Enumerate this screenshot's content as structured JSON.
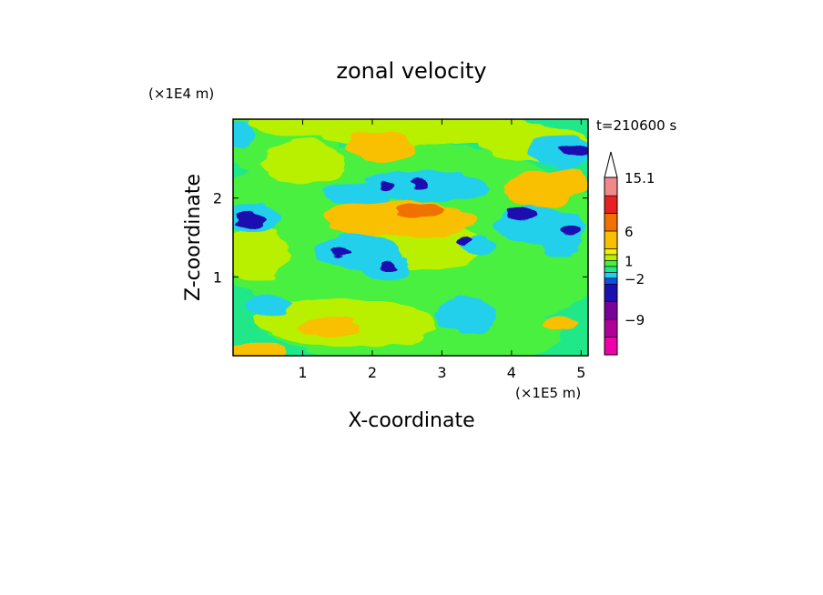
{
  "chart_data": {
    "type": "heatmap",
    "title": "zonal velocity",
    "xlabel": "X-coordinate",
    "ylabel": "Z-coordinate",
    "x_scale_label": "(×1E5 m)",
    "y_scale_label": "(×1E4 m)",
    "time_label": "t=210600 s",
    "xlim": [
      0,
      5.1
    ],
    "ylim": [
      0,
      3.0
    ],
    "x_ticks": [
      {
        "value": 1,
        "label": "1"
      },
      {
        "value": 2,
        "label": "2"
      },
      {
        "value": 3,
        "label": "3"
      },
      {
        "value": 4,
        "label": "4"
      },
      {
        "value": 5,
        "label": "5"
      }
    ],
    "y_ticks": [
      {
        "value": 1,
        "label": "1"
      },
      {
        "value": 2,
        "label": "2"
      }
    ],
    "colorbar": {
      "levels": [
        -15,
        -12,
        -9,
        -6,
        -3,
        -2,
        -1,
        0,
        1,
        2,
        3,
        6,
        9,
        12,
        15.1
      ],
      "colors": [
        "#f000a8",
        "#b0009a",
        "#7a009a",
        "#1a10b0",
        "#1050e8",
        "#22d0ec",
        "#20e888",
        "#48f040",
        "#b8f000",
        "#f0f000",
        "#f8c000",
        "#f07000",
        "#e82020",
        "#f08a8a",
        "#f8c8c8"
      ],
      "labels": [
        {
          "value": 15.1,
          "label": "15.1"
        },
        {
          "value": 6,
          "label": "6"
        },
        {
          "value": 1,
          "label": "1"
        },
        {
          "value": -2,
          "label": "−2"
        },
        {
          "value": -9,
          "label": "−9"
        }
      ],
      "max_arrow": true
    },
    "fields": [
      {
        "level": 0.5,
        "blobs": [
          {
            "x": 2.55,
            "z": 1.5,
            "rx": 3.0,
            "rz": 1.2,
            "a": 3
          },
          {
            "x": 2.5,
            "z": 0.35,
            "rx": 2.2,
            "rz": 0.45,
            "a": 3
          },
          {
            "x": 0.6,
            "z": 2.7,
            "rx": 0.9,
            "rz": 0.4,
            "a": 2
          }
        ]
      },
      {
        "level": 1.5,
        "blobs": [
          {
            "x": 1.6,
            "z": 0.42,
            "rx": 1.3,
            "rz": 0.32,
            "a": 2
          },
          {
            "x": 2.4,
            "z": 2.9,
            "rx": 2.2,
            "rz": 0.22,
            "a": 2
          },
          {
            "x": 1.0,
            "z": 2.45,
            "rx": 0.6,
            "rz": 0.28,
            "a": 2
          },
          {
            "x": 2.8,
            "z": 1.4,
            "rx": 0.8,
            "rz": 0.3,
            "a": 2
          },
          {
            "x": 4.3,
            "z": 2.7,
            "rx": 0.8,
            "rz": 0.25,
            "a": 2
          },
          {
            "x": 0.35,
            "z": 1.3,
            "rx": 0.45,
            "rz": 0.35,
            "a": 2
          }
        ]
      },
      {
        "level": 3,
        "blobs": [
          {
            "x": 2.4,
            "z": 1.75,
            "rx": 1.1,
            "rz": 0.22,
            "a": 2
          },
          {
            "x": 1.9,
            "z": 1.65,
            "rx": 0.5,
            "rz": 0.15,
            "a": 1
          },
          {
            "x": 2.1,
            "z": 2.65,
            "rx": 0.5,
            "rz": 0.18,
            "a": 1
          },
          {
            "x": 4.4,
            "z": 2.1,
            "rx": 0.5,
            "rz": 0.22,
            "a": 1
          },
          {
            "x": 4.8,
            "z": 2.2,
            "rx": 0.3,
            "rz": 0.2,
            "a": 1
          },
          {
            "x": 1.4,
            "z": 0.35,
            "rx": 0.45,
            "rz": 0.12,
            "a": 1
          },
          {
            "x": 0.25,
            "z": 0.05,
            "rx": 0.5,
            "rz": 0.12,
            "a": 1
          },
          {
            "x": 4.7,
            "z": 0.4,
            "rx": 0.25,
            "rz": 0.12,
            "a": 1
          }
        ]
      },
      {
        "level": 6,
        "blobs": [
          {
            "x": 2.7,
            "z": 1.85,
            "rx": 0.35,
            "rz": 0.08,
            "a": 1
          }
        ]
      },
      {
        "level": -1.5,
        "blobs": [
          {
            "x": 0.3,
            "z": 1.75,
            "rx": 0.4,
            "rz": 0.18,
            "a": 2
          },
          {
            "x": 2.8,
            "z": 2.15,
            "rx": 0.9,
            "rz": 0.2,
            "a": 2
          },
          {
            "x": 1.8,
            "z": 2.05,
            "rx": 0.5,
            "rz": 0.15,
            "a": 2
          },
          {
            "x": 4.4,
            "z": 1.65,
            "rx": 0.65,
            "rz": 0.25,
            "a": 2
          },
          {
            "x": 4.7,
            "z": 2.6,
            "rx": 0.45,
            "rz": 0.2,
            "a": 2
          },
          {
            "x": 3.35,
            "z": 0.5,
            "rx": 0.45,
            "rz": 0.22,
            "a": 2
          },
          {
            "x": 1.8,
            "z": 1.3,
            "rx": 0.6,
            "rz": 0.22,
            "a": 2
          },
          {
            "x": 2.2,
            "z": 1.1,
            "rx": 0.35,
            "rz": 0.18,
            "a": 2
          },
          {
            "x": 4.7,
            "z": 1.4,
            "rx": 0.3,
            "rz": 0.15,
            "a": 1
          },
          {
            "x": 0.1,
            "z": 2.8,
            "rx": 0.2,
            "rz": 0.18,
            "a": 1
          },
          {
            "x": 3.5,
            "z": 1.4,
            "rx": 0.25,
            "rz": 0.12,
            "a": 1
          },
          {
            "x": 0.5,
            "z": 0.65,
            "rx": 0.35,
            "rz": 0.14,
            "a": 1
          }
        ]
      },
      {
        "level": -4,
        "blobs": [
          {
            "x": 0.27,
            "z": 1.73,
            "rx": 0.22,
            "rz": 0.09,
            "a": 1
          },
          {
            "x": 4.15,
            "z": 1.8,
            "rx": 0.22,
            "rz": 0.09,
            "a": 1
          },
          {
            "x": 4.9,
            "z": 2.6,
            "rx": 0.22,
            "rz": 0.06,
            "a": 1
          },
          {
            "x": 1.55,
            "z": 1.33,
            "rx": 0.15,
            "rz": 0.06,
            "a": 1
          },
          {
            "x": 2.25,
            "z": 1.12,
            "rx": 0.12,
            "rz": 0.06,
            "a": 1
          },
          {
            "x": 3.3,
            "z": 1.45,
            "rx": 0.1,
            "rz": 0.07,
            "a": 1
          },
          {
            "x": 4.85,
            "z": 1.6,
            "rx": 0.15,
            "rz": 0.06,
            "a": 1
          },
          {
            "x": 2.2,
            "z": 2.15,
            "rx": 0.1,
            "rz": 0.07,
            "a": 1
          },
          {
            "x": 2.65,
            "z": 2.2,
            "rx": 0.12,
            "rz": 0.05,
            "a": 1
          }
        ]
      }
    ]
  }
}
